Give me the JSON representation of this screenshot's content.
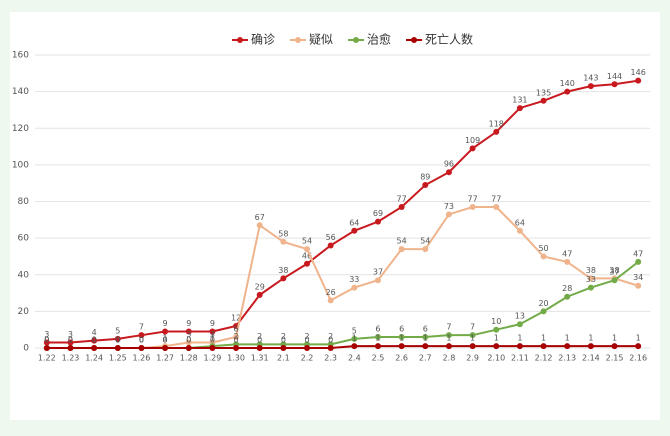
{
  "chart_data": {
    "type": "line",
    "categories": [
      "1.22",
      "1.23",
      "1.24",
      "1.25",
      "1.26",
      "1.27",
      "1.28",
      "1.29",
      "1.30",
      "1.31",
      "2.1",
      "2.2",
      "2.3",
      "2.4",
      "2.5",
      "2.6",
      "2.7",
      "2.8",
      "2.9",
      "2.10",
      "2.11",
      "2.12",
      "2.13",
      "2.14",
      "2.15",
      "2.16"
    ],
    "series": [
      {
        "name": "确诊",
        "color": "#c8191e",
        "values": [
          3,
          3,
          4,
          5,
          7,
          9,
          9,
          9,
          12,
          29,
          38,
          46,
          56,
          64,
          69,
          77,
          89,
          96,
          109,
          118,
          131,
          135,
          140,
          143,
          144,
          146
        ]
      },
      {
        "name": "疑似",
        "color": "#efb48c",
        "values": [
          0,
          0,
          0,
          0,
          0,
          1,
          3,
          3,
          6,
          67,
          58,
          54,
          26,
          33,
          37,
          54,
          54,
          73,
          77,
          77,
          64,
          50,
          47,
          38,
          38,
          34
        ]
      },
      {
        "name": "治愈",
        "color": "#72ab48",
        "values": [
          0,
          0,
          0,
          0,
          0,
          0,
          0,
          1,
          2,
          2,
          2,
          2,
          2,
          5,
          6,
          6,
          6,
          7,
          7,
          10,
          13,
          20,
          28,
          33,
          37,
          47
        ]
      },
      {
        "name": "死亡人数",
        "color": "#a80000",
        "values": [
          0,
          0,
          0,
          0,
          0,
          0,
          0,
          0,
          0,
          0,
          0,
          0,
          0,
          1,
          1,
          1,
          1,
          1,
          1,
          1,
          1,
          1,
          1,
          1,
          1,
          1
        ]
      }
    ],
    "ylim": [
      0,
      160
    ],
    "yticks": [
      0,
      20,
      40,
      60,
      80,
      100,
      120,
      140,
      160
    ],
    "grid": true
  }
}
